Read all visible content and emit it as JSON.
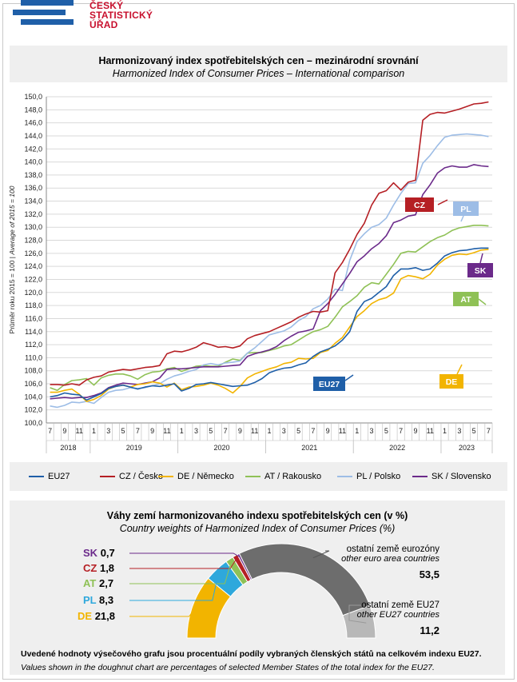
{
  "logo": {
    "line1": "ČESKÝ",
    "line2": "STATISTICKÝ",
    "line3": "ÚŘAD"
  },
  "header": {
    "title_cz": "Harmonizovaný index spotřebitelských cen – mezinárodní srovnání",
    "title_en": "Harmonized Index of Consumer Prices – International comparison"
  },
  "legend": {
    "items": [
      {
        "label": "EU27",
        "color": "#1f5fa8"
      },
      {
        "label": "CZ / Česko",
        "color": "#b51f24"
      },
      {
        "label": "DE / Německo",
        "color": "#f2b400"
      },
      {
        "label": "AT / Rakousko",
        "color": "#8fc156"
      },
      {
        "label": "PL / Polsko",
        "color": "#9dbde6"
      },
      {
        "label": "SK / Slovensko",
        "color": "#6b2a8a"
      }
    ]
  },
  "weights": {
    "title_cz": "Váhy zemí harmonizovaného indexu spotřebitelských cen (v %)",
    "title_en": "Country weights of Harmonized Index of Consumer Prices (%)",
    "items": [
      {
        "code": "SK",
        "value": "0,7",
        "color": "#6b2a8a"
      },
      {
        "code": "CZ",
        "value": "1,8",
        "color": "#b51f24"
      },
      {
        "code": "AT",
        "value": "2,7",
        "color": "#8fc156"
      },
      {
        "code": "PL",
        "value": "8,3",
        "color": "#2ea8dc"
      },
      {
        "code": "DE",
        "value": "21,8",
        "color": "#f2b400"
      }
    ],
    "other_euro": {
      "cz": "ostatní země eurozóny",
      "en": "other euro area countries",
      "value": "53,5",
      "color": "#6d6d6d"
    },
    "other_eu": {
      "cz": "ostatní země EU27",
      "en": "other EU27 countries",
      "value": "11,2",
      "color": "#b8b8b8"
    },
    "note_cz": "Uvedené hodnoty výsečového grafu jsou procentuální podíly vybraných členských států na celkovém indexu EU27.",
    "note_en": "Values shown in the doughnut chart are percentages of selected Member States of the total index for the EU27."
  },
  "chart_data": {
    "type": "line",
    "ylabel": "Průměr roku 2015 = 100 | Average of 2015 = 100",
    "ylim": [
      100,
      150
    ],
    "ytick_step": 2,
    "x_start": "2018-07",
    "x_tick_labels": [
      "7",
      "9",
      "11",
      "1",
      "3",
      "5",
      "7",
      "9",
      "11",
      "1",
      "3",
      "5",
      "7",
      "9",
      "11",
      "1",
      "3",
      "5",
      "7",
      "9",
      "11",
      "1",
      "3",
      "5",
      "7",
      "9",
      "11",
      "1",
      "3",
      "5",
      "7"
    ],
    "years": [
      "2018",
      "2019",
      "2020",
      "2021",
      "2022",
      "2023"
    ],
    "grid": true,
    "series": [
      {
        "name": "EU27",
        "end_label": "EU27",
        "color": "#1f5fa8",
        "values": [
          104.0,
          104.2,
          104.6,
          104.4,
          104.3,
          103.5,
          104.0,
          104.5,
          105.3,
          105.6,
          105.8,
          105.5,
          105.2,
          105.5,
          105.7,
          105.6,
          105.8,
          106.0,
          104.9,
          105.3,
          105.9,
          106.0,
          106.2,
          106.0,
          105.8,
          105.6,
          105.7,
          105.8,
          106.2,
          106.8,
          107.7,
          108.1,
          108.4,
          108.5,
          108.9,
          109.2,
          110.2,
          110.9,
          111.3,
          111.8,
          112.7,
          114.0,
          117.1,
          118.6,
          119.1,
          120.0,
          120.9,
          122.6,
          123.6,
          123.6,
          123.8,
          123.4,
          123.6,
          124.5,
          125.6,
          126.1,
          126.4,
          126.5,
          126.7,
          126.8,
          126.8
        ]
      },
      {
        "name": "CZ / Česko",
        "end_label": "CZ",
        "color": "#b51f24",
        "values": [
          105.9,
          105.9,
          105.8,
          106.0,
          105.8,
          106.6,
          107.0,
          107.2,
          107.8,
          108.0,
          108.2,
          108.1,
          108.3,
          108.5,
          108.6,
          108.8,
          110.6,
          111.0,
          110.9,
          111.2,
          111.6,
          112.3,
          112.0,
          111.6,
          111.7,
          111.5,
          111.8,
          112.9,
          113.4,
          113.7,
          114.0,
          114.5,
          115.0,
          115.5,
          116.2,
          116.7,
          117.1,
          117.0,
          117.2,
          123.0,
          124.6,
          126.6,
          128.9,
          130.6,
          133.4,
          135.2,
          135.6,
          136.8,
          135.7,
          136.9,
          137.2,
          146.4,
          147.3,
          147.6,
          147.5,
          147.8,
          148.1,
          148.5,
          148.9,
          149.0,
          149.2
        ]
      },
      {
        "name": "DE / Německo",
        "end_label": "DE",
        "color": "#f2b400",
        "values": [
          104.7,
          104.7,
          105.0,
          105.2,
          104.4,
          103.3,
          103.6,
          104.2,
          105.2,
          105.6,
          105.8,
          105.5,
          105.9,
          106.0,
          106.3,
          106.1,
          105.5,
          106.1,
          105.1,
          105.5,
          105.6,
          105.8,
          106.1,
          105.8,
          105.3,
          104.6,
          105.6,
          106.9,
          107.5,
          107.9,
          108.3,
          108.6,
          109.1,
          109.3,
          109.9,
          109.8,
          109.9,
          110.8,
          111.1,
          112.2,
          113.1,
          114.7,
          116.3,
          117.2,
          118.3,
          118.9,
          119.2,
          119.9,
          122.1,
          122.6,
          122.4,
          122.1,
          122.8,
          124.2,
          125.1,
          125.7,
          125.9,
          125.8,
          126.1,
          126.5,
          126.6
        ]
      },
      {
        "name": "AT / Rakousko",
        "end_label": "AT",
        "color": "#8fc156",
        "values": [
          105.4,
          105.0,
          105.9,
          106.5,
          106.6,
          106.8,
          105.8,
          106.9,
          107.3,
          107.5,
          107.5,
          107.2,
          106.7,
          107.4,
          107.8,
          107.9,
          108.3,
          108.5,
          107.9,
          108.3,
          108.7,
          108.8,
          108.7,
          108.7,
          109.3,
          109.8,
          109.6,
          110.7,
          110.8,
          110.8,
          111.1,
          111.4,
          111.8,
          112.0,
          112.7,
          113.4,
          114.0,
          114.3,
          114.8,
          116.2,
          117.8,
          118.6,
          119.5,
          120.8,
          121.5,
          121.3,
          122.8,
          124.3,
          126.0,
          126.3,
          126.2,
          127.0,
          127.8,
          128.4,
          128.8,
          129.5,
          129.9,
          130.1,
          130.3,
          130.3,
          130.2
        ]
      },
      {
        "name": "PL / Polsko",
        "end_label": "PL",
        "color": "#9dbde6",
        "values": [
          102.6,
          102.4,
          102.7,
          103.2,
          103.1,
          103.3,
          103.0,
          103.9,
          104.7,
          105.0,
          105.1,
          105.4,
          105.3,
          105.4,
          105.7,
          106.0,
          106.7,
          107.2,
          107.5,
          107.9,
          108.2,
          108.9,
          109.1,
          108.9,
          109.2,
          109.3,
          109.5,
          110.7,
          111.5,
          112.5,
          113.5,
          113.8,
          114.1,
          114.7,
          115.7,
          116.3,
          117.5,
          118.0,
          119.0,
          120.5,
          120.3,
          124.9,
          127.8,
          129.0,
          130.0,
          130.4,
          131.4,
          133.4,
          135.2,
          136.7,
          136.8,
          139.8,
          141.0,
          142.5,
          143.8,
          144.1,
          144.2,
          144.3,
          144.2,
          144.1,
          143.9
        ]
      },
      {
        "name": "SK / Slovensko",
        "end_label": "SK",
        "color": "#6b2a8a",
        "values": [
          103.7,
          103.8,
          103.9,
          103.8,
          103.9,
          103.9,
          104.2,
          104.6,
          105.4,
          105.8,
          106.1,
          106.0,
          105.9,
          106.1,
          106.3,
          106.9,
          108.2,
          108.3,
          108.3,
          108.4,
          108.5,
          108.6,
          108.6,
          108.6,
          108.7,
          108.8,
          108.9,
          110.2,
          110.6,
          110.9,
          111.2,
          111.7,
          112.6,
          113.3,
          113.9,
          114.1,
          114.4,
          117.2,
          118.3,
          119.7,
          121.3,
          122.9,
          124.7,
          125.6,
          126.7,
          127.5,
          128.7,
          130.7,
          131.1,
          131.7,
          131.9,
          135.0,
          136.5,
          138.3,
          139.1,
          139.4,
          139.2,
          139.2,
          139.6,
          139.4,
          139.3
        ]
      }
    ]
  }
}
